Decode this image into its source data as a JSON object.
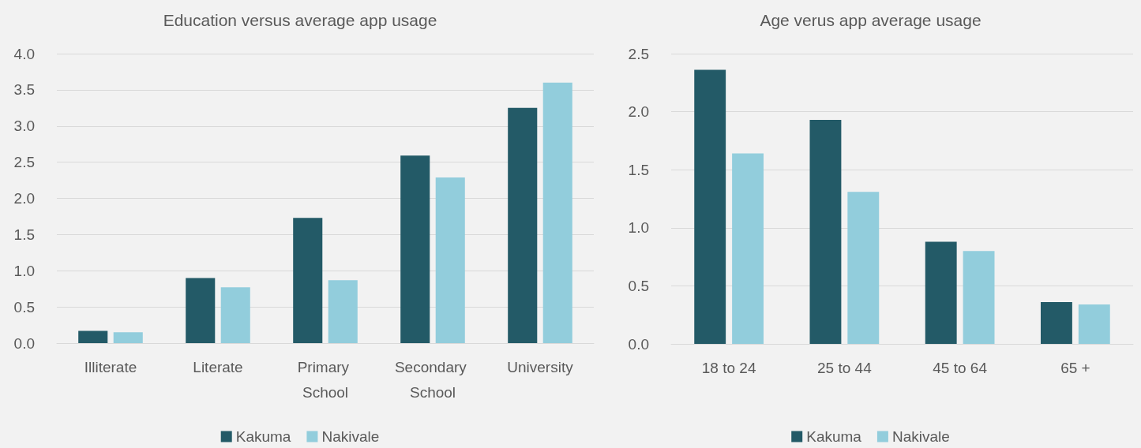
{
  "chart_data": [
    {
      "type": "bar",
      "title": "Education versus average app usage",
      "categories": [
        "Illiterate",
        "Literate",
        "Primary School",
        "Secondary School",
        "University"
      ],
      "series": [
        {
          "name": "Kakuma",
          "color": "#235a67",
          "values": [
            0.17,
            0.9,
            1.73,
            2.59,
            3.25
          ]
        },
        {
          "name": "Nakivale",
          "color": "#92cddc",
          "values": [
            0.15,
            0.77,
            0.87,
            2.29,
            3.6
          ]
        }
      ],
      "ylim": [
        0,
        4
      ],
      "yticks": [
        {
          "value": 0,
          "label": "0.0"
        },
        {
          "value": 0.5,
          "label": "0.5"
        },
        {
          "value": 1,
          "label": "1.0"
        },
        {
          "value": 1.5,
          "label": "1.5"
        },
        {
          "value": 2,
          "label": "2.0"
        },
        {
          "value": 2.5,
          "label": "2.5"
        },
        {
          "value": 3,
          "label": "3.0"
        },
        {
          "value": 3.5,
          "label": "3.5"
        },
        {
          "value": 4,
          "label": "4.0"
        }
      ],
      "grid": "y",
      "legend": "bottom"
    },
    {
      "type": "bar",
      "title": "Age verus app average usage",
      "categories": [
        "18 to 24",
        "25 to 44",
        "45 to 64",
        "65 +"
      ],
      "series": [
        {
          "name": "Kakuma",
          "color": "#235a67",
          "values": [
            2.36,
            1.93,
            0.88,
            0.36
          ]
        },
        {
          "name": "Nakivale",
          "color": "#92cddc",
          "values": [
            1.64,
            1.31,
            0.8,
            0.34
          ]
        }
      ],
      "ylim": [
        0,
        2.5
      ],
      "yticks": [
        {
          "value": 0,
          "label": "0.0"
        },
        {
          "value": 0.5,
          "label": "0.5"
        },
        {
          "value": 1,
          "label": "1.0"
        },
        {
          "value": 1.5,
          "label": "1.5"
        },
        {
          "value": 2,
          "label": "2.0"
        },
        {
          "value": 2.5,
          "label": "2.5"
        }
      ],
      "grid": "y",
      "legend": "bottom"
    }
  ]
}
